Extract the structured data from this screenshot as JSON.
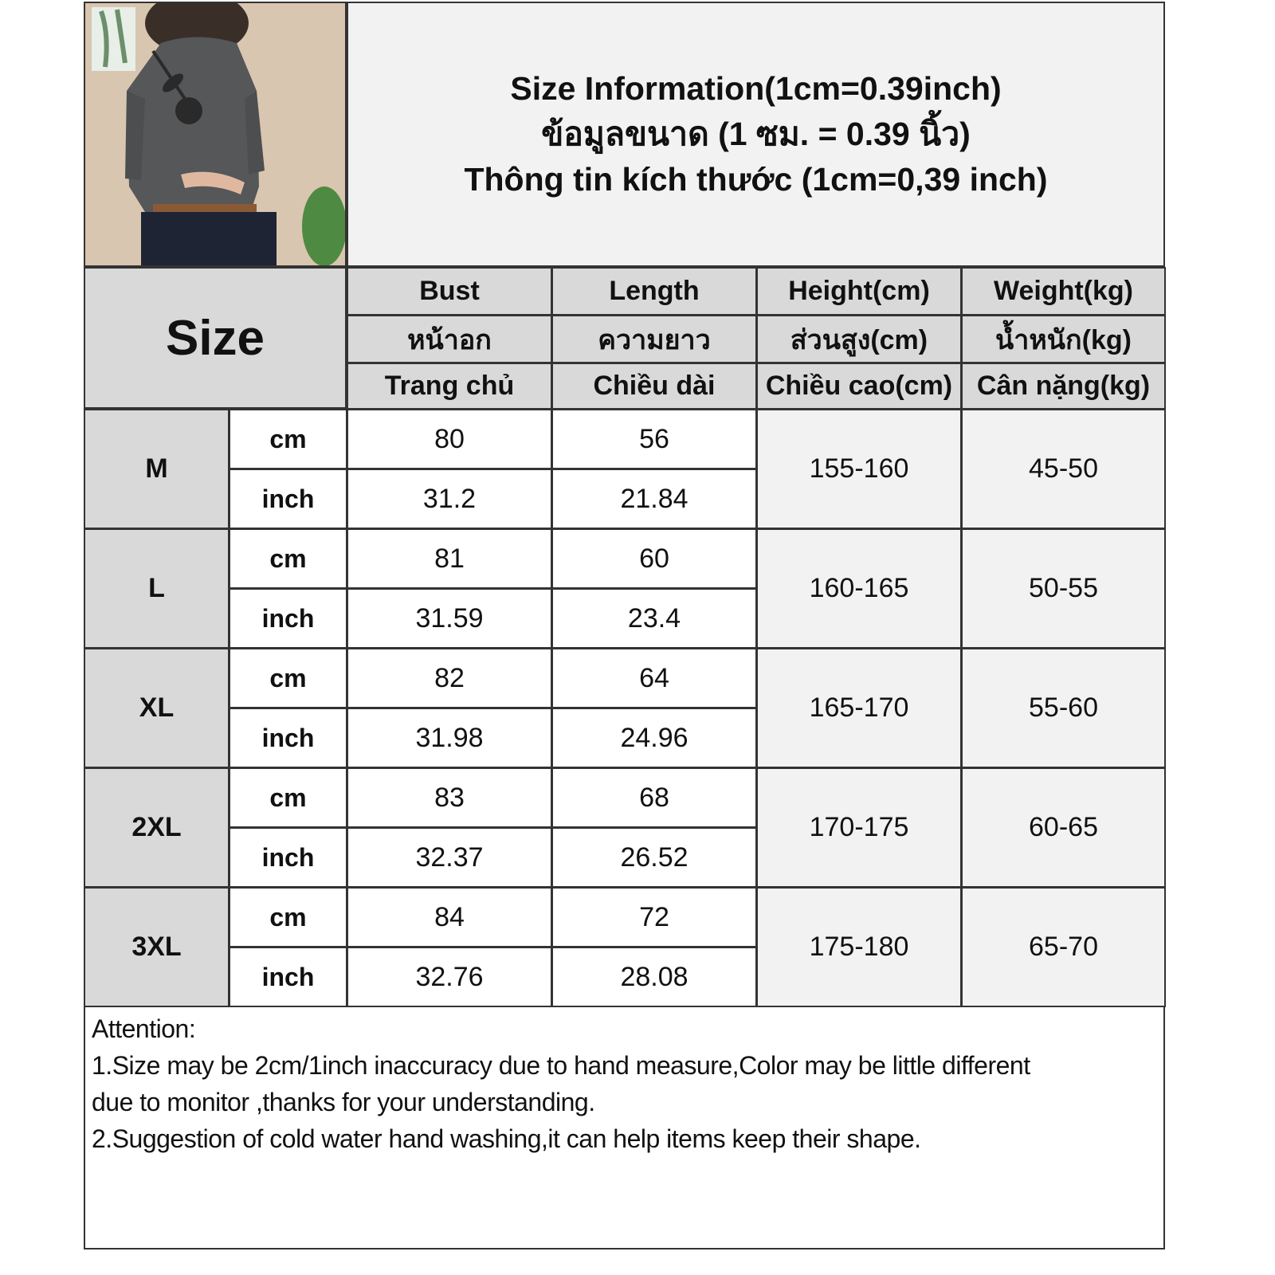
{
  "title_lines": [
    "Size Information(1cm=0.39inch)",
    "ข้อมูลขนาด (1 ซม. = 0.39 นิ้ว)",
    "Thông tin kích thước (1cm=0,39 inch)"
  ],
  "size_header": "Size",
  "columns": [
    {
      "en": "Bust",
      "th": "หน้าอก",
      "vi": "Trang chủ"
    },
    {
      "en": "Length",
      "th": "ความยาว",
      "vi": "Chiều dài"
    },
    {
      "en": "Height(cm)",
      "th": "ส่วนสูง(cm)",
      "vi": "Chiều cao(cm)"
    },
    {
      "en": "Weight(kg)",
      "th": "น้ำหนัก(kg)",
      "vi": "Cân nặng(kg)"
    }
  ],
  "units": {
    "cm": "cm",
    "inch": "inch"
  },
  "rows": [
    {
      "size": "M",
      "bust_cm": "80",
      "length_cm": "56",
      "bust_inch": "31.2",
      "length_inch": "21.84",
      "height": "155-160",
      "weight": "45-50"
    },
    {
      "size": "L",
      "bust_cm": "81",
      "length_cm": "60",
      "bust_inch": "31.59",
      "length_inch": "23.4",
      "height": "160-165",
      "weight": "50-55"
    },
    {
      "size": "XL",
      "bust_cm": "82",
      "length_cm": "64",
      "bust_inch": "31.98",
      "length_inch": "24.96",
      "height": "165-170",
      "weight": "55-60"
    },
    {
      "size": "2XL",
      "bust_cm": "83",
      "length_cm": "68",
      "bust_inch": "32.37",
      "length_inch": "26.52",
      "height": "170-175",
      "weight": "60-65"
    },
    {
      "size": "3XL",
      "bust_cm": "84",
      "length_cm": "72",
      "bust_inch": "32.76",
      "length_inch": "28.08",
      "height": "175-180",
      "weight": "65-70"
    }
  ],
  "notes": [
    "Attention:",
    "1.Size may be 2cm/1inch inaccuracy due to hand measure,Color may be little different",
    "due to monitor ,thanks for your understanding.",
    "2.Suggestion of cold water hand washing,it can help items keep their shape."
  ]
}
